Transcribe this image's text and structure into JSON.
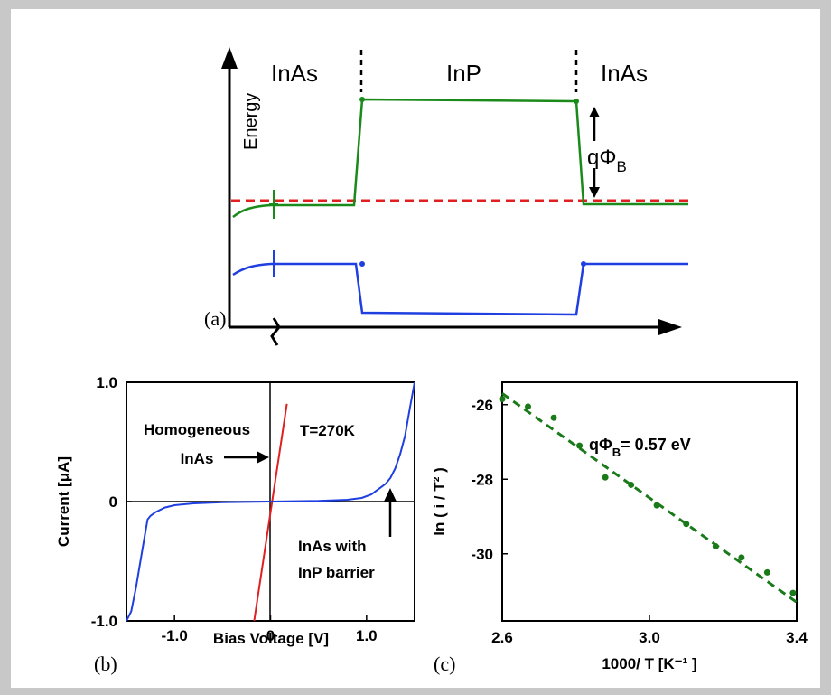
{
  "colors": {
    "frame": "#c8c8c8",
    "panel": "#ffffff",
    "conduction_band": "#1a8a1a",
    "valence_band": "#1f3fe0",
    "fermi_level": "#e02020",
    "homogeneous_curve": "#e02020",
    "barrier_curve": "#1f3fe0",
    "fit_line": "#1a7a1a",
    "axis": "#000000"
  },
  "chart_data": [
    {
      "panel": "(a)",
      "type": "line",
      "title": "",
      "xlabel": "",
      "ylabel": "Energy",
      "region_labels": [
        "InAs",
        "InP",
        "InAs"
      ],
      "annotation": {
        "symbol": "qΦ",
        "subscript": "B"
      },
      "series": [
        {
          "x": [
            0,
            0.5,
            1,
            1.5,
            2,
            2.5,
            3,
            3.5,
            4,
            4.5,
            5,
            5.5,
            6,
            6.5,
            7,
            7.5,
            8,
            8.5,
            9,
            9.5,
            10
          ],
          "y": [
            -0.2,
            -0.05,
            -0.02,
            -0.02,
            -0.02,
            -0.02,
            0.9,
            0.9,
            0.89,
            0.89,
            0.89,
            0.89,
            0.89,
            0.89,
            0.89,
            0.88,
            -0.02,
            -0.02,
            -0.02,
            -0.02,
            -0.02
          ]
        },
        {
          "x": [
            0,
            0.5,
            1,
            1.5,
            2,
            2.5,
            3,
            3.5,
            4,
            4.5,
            5,
            5.5,
            6,
            6.5,
            7,
            7.5,
            8,
            8.5,
            9,
            9.5,
            10
          ],
          "y": [
            -0.95,
            -0.8,
            -0.78,
            -0.78,
            -0.78,
            -0.78,
            -1.42,
            -1.41,
            -1.41,
            -1.41,
            -1.41,
            -1.41,
            -1.41,
            -1.41,
            -1.41,
            -1.4,
            -0.78,
            -0.78,
            -0.78,
            -0.78,
            -0.78
          ]
        },
        {
          "x": [
            0,
            10
          ],
          "y": [
            0,
            0
          ]
        }
      ],
      "interfaces": [
        3,
        7.6
      ]
    },
    {
      "panel": "(b)",
      "type": "line",
      "title": "",
      "xlabel": "Bias Voltage [V]",
      "ylabel": "Current [μA]",
      "xlim": [
        -1.5,
        1.5
      ],
      "ylim": [
        -1.0,
        1.0
      ],
      "xticks": [
        "-1.0",
        "0",
        "1.0"
      ],
      "yticks": [
        "-1.0",
        "0",
        "1.0"
      ],
      "annotations": [
        "Homogeneous",
        "InAs",
        "T=270K",
        "InAs with",
        "InP barrier"
      ],
      "series": [
        {
          "x": [
            -0.17,
            0.17
          ],
          "y": [
            -1.0,
            0.82
          ]
        },
        {
          "x": [
            -1.5,
            -1.45,
            -1.4,
            -1.35,
            -1.3,
            -1.28,
            -1.25,
            -1.2,
            -1.1,
            -1.0,
            -0.8,
            -0.5,
            0,
            0.5,
            0.8,
            0.95,
            1.05,
            1.1,
            1.15,
            1.2,
            1.25,
            1.3,
            1.35,
            1.4,
            1.45,
            1.5
          ],
          "y": [
            -1.0,
            -0.92,
            -0.72,
            -0.48,
            -0.24,
            -0.15,
            -0.12,
            -0.09,
            -0.05,
            -0.03,
            -0.015,
            -0.005,
            0,
            0.005,
            0.015,
            0.03,
            0.06,
            0.09,
            0.12,
            0.15,
            0.2,
            0.28,
            0.4,
            0.55,
            0.78,
            1.0
          ]
        }
      ]
    },
    {
      "panel": "(c)",
      "type": "scatter",
      "title": "",
      "xlabel": "1000/ T [K⁻¹ ]",
      "ylabel": "ln ( i / T² )",
      "xlim": [
        2.6,
        3.4
      ],
      "ylim": [
        -31.8,
        -25.4
      ],
      "xticks": [
        "2.6",
        "3.0",
        "3.4"
      ],
      "yticks": [
        "-26",
        "-28",
        "-30"
      ],
      "annotation": {
        "symbol": "qΦ",
        "subscript": "B",
        "suffix": "= 0.57 eV"
      },
      "x": [
        2.6,
        2.67,
        2.74,
        2.81,
        2.88,
        2.95,
        3.02,
        3.1,
        3.18,
        3.25,
        3.32,
        3.39
      ],
      "y": [
        -25.85,
        -26.05,
        -26.35,
        -27.1,
        -27.95,
        -28.15,
        -28.7,
        -29.2,
        -29.8,
        -30.1,
        -30.5,
        -31.05
      ],
      "fit": {
        "x": [
          2.6,
          3.4
        ],
        "y": [
          -25.7,
          -31.3
        ]
      }
    }
  ]
}
